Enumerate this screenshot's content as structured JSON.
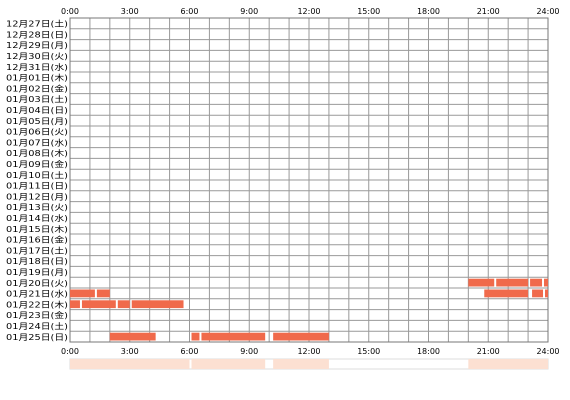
{
  "chart_data": {
    "type": "bar",
    "title": "",
    "xlabel": "",
    "ylabel": "",
    "x_unit": "hour of day",
    "xlim": [
      0,
      24
    ],
    "x_ticks": [
      "0:00",
      "3:00",
      "6:00",
      "9:00",
      "12:00",
      "15:00",
      "18:00",
      "21:00",
      "24:00"
    ],
    "grid": true,
    "bar_color": "#f06a4b",
    "summary_color": "#fce0d2",
    "rows": [
      {
        "label": "12月27日(土)",
        "segments": []
      },
      {
        "label": "12月28日(日)",
        "segments": []
      },
      {
        "label": "12月29日(月)",
        "segments": []
      },
      {
        "label": "12月30日(火)",
        "segments": []
      },
      {
        "label": "12月31日(水)",
        "segments": []
      },
      {
        "label": "01月01日(木)",
        "segments": []
      },
      {
        "label": "01月02日(金)",
        "segments": []
      },
      {
        "label": "01月03日(土)",
        "segments": []
      },
      {
        "label": "01月04日(日)",
        "segments": []
      },
      {
        "label": "01月05日(月)",
        "segments": []
      },
      {
        "label": "01月06日(火)",
        "segments": []
      },
      {
        "label": "01月07日(水)",
        "segments": []
      },
      {
        "label": "01月08日(木)",
        "segments": []
      },
      {
        "label": "01月09日(金)",
        "segments": []
      },
      {
        "label": "01月10日(土)",
        "segments": []
      },
      {
        "label": "01月11日(日)",
        "segments": []
      },
      {
        "label": "01月12日(月)",
        "segments": []
      },
      {
        "label": "01月13日(火)",
        "segments": []
      },
      {
        "label": "01月14日(水)",
        "segments": []
      },
      {
        "label": "01月15日(木)",
        "segments": []
      },
      {
        "label": "01月16日(金)",
        "segments": []
      },
      {
        "label": "01月17日(土)",
        "segments": []
      },
      {
        "label": "01月18日(日)",
        "segments": []
      },
      {
        "label": "01月19日(月)",
        "segments": []
      },
      {
        "label": "01月20日(火)",
        "segments": [
          [
            20.0,
            21.3
          ],
          [
            21.4,
            23.0
          ],
          [
            23.1,
            23.7
          ],
          [
            23.8,
            24.0
          ]
        ]
      },
      {
        "label": "01月21日(水)",
        "segments": [
          [
            0.0,
            1.25
          ],
          [
            1.35,
            2.0
          ],
          [
            20.8,
            23.0
          ],
          [
            23.2,
            23.75
          ],
          [
            23.85,
            24.0
          ]
        ]
      },
      {
        "label": "01月22日(木)",
        "segments": [
          [
            0.0,
            0.5
          ],
          [
            0.6,
            2.3
          ],
          [
            2.4,
            3.0
          ],
          [
            3.1,
            5.7
          ]
        ]
      },
      {
        "label": "01月23日(金)",
        "segments": []
      },
      {
        "label": "01月24日(土)",
        "segments": []
      },
      {
        "label": "01月25日(日)",
        "segments": [
          [
            2.0,
            4.3
          ],
          [
            6.1,
            6.5
          ],
          [
            6.6,
            9.8
          ],
          [
            10.2,
            13.0
          ]
        ]
      }
    ],
    "summary_segments": [
      [
        0.0,
        6.0
      ],
      [
        6.1,
        9.8
      ],
      [
        10.2,
        13.0
      ],
      [
        20.0,
        24.0
      ]
    ]
  }
}
